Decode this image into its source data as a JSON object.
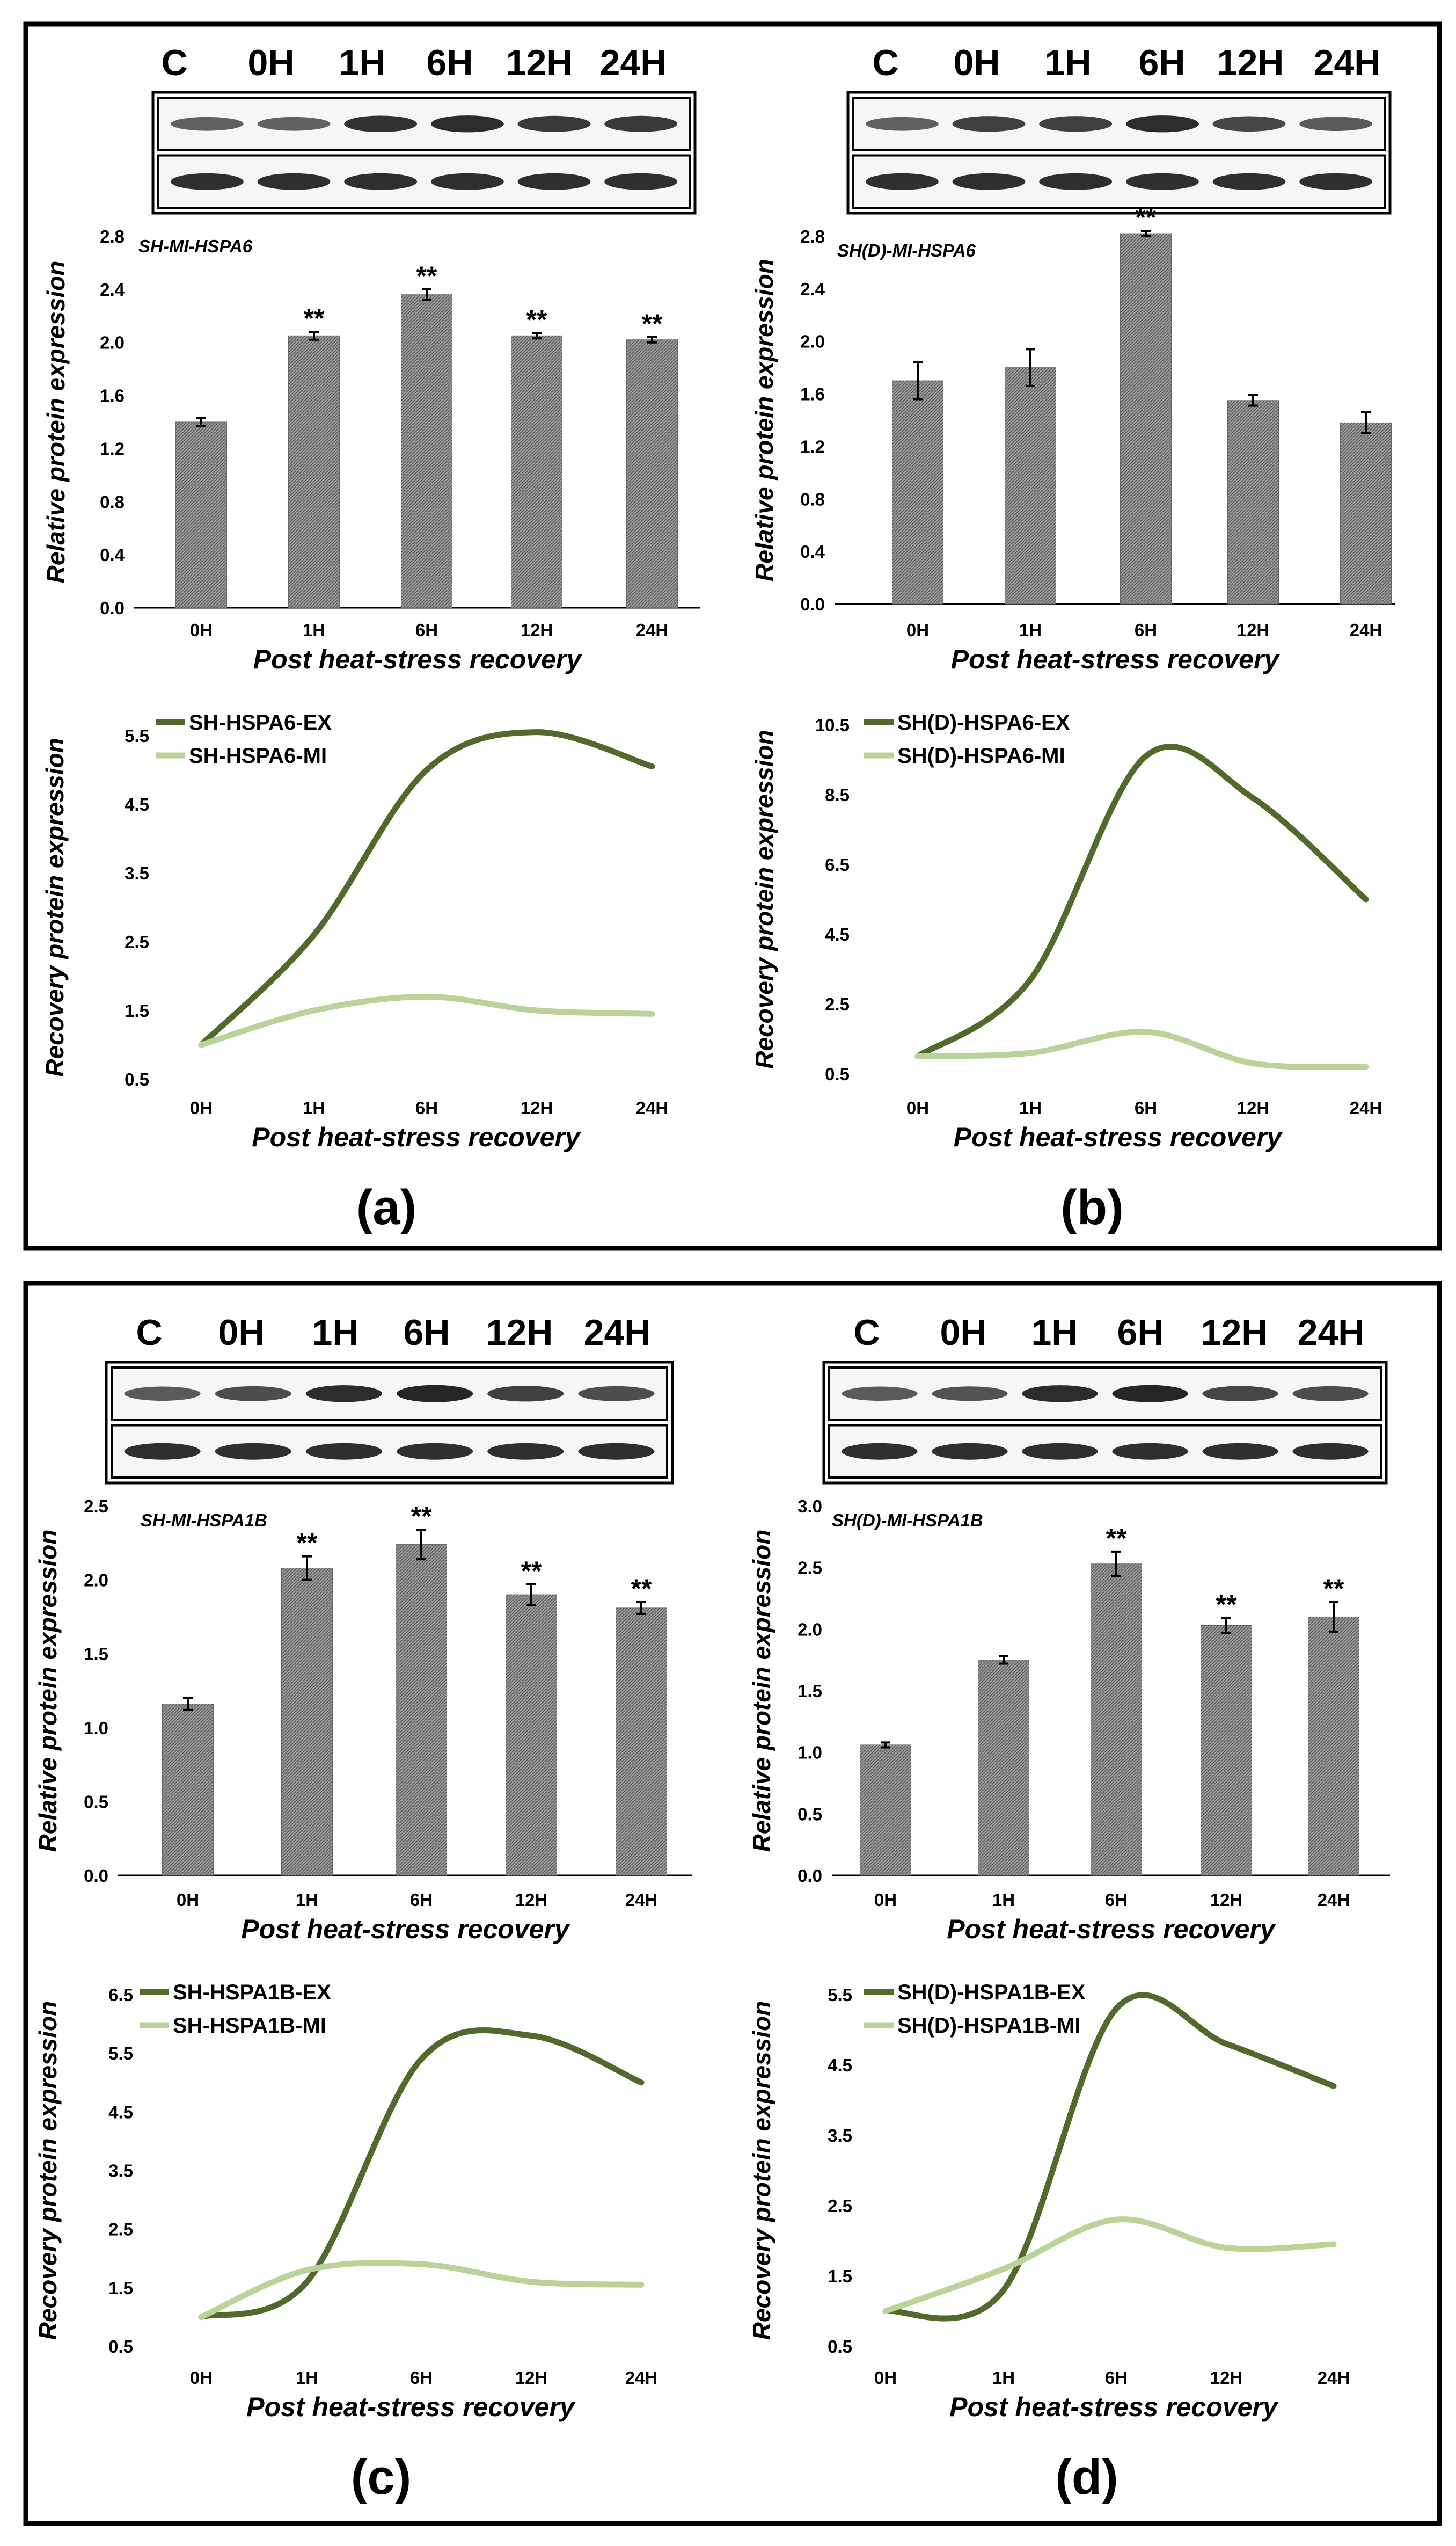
{
  "colors": {
    "ex": "#4f6a2a",
    "mi": "#b8d49a",
    "bar": "#8a8a8a",
    "frame": "#000000"
  },
  "panels": [
    {
      "label": "(a)",
      "lanes": [
        "C",
        "0H",
        "1H",
        "6H",
        "12H",
        "24H"
      ],
      "bar": {
        "title": "SH-MI-HSPA6",
        "ylabel": "Relative protein expression",
        "xlabel": "Post heat-stress recovery",
        "yticks": [
          "0.0",
          "0.4",
          "0.8",
          "1.2",
          "1.6",
          "2.0",
          "2.4",
          "2.8"
        ]
      },
      "line": {
        "ylabel": "Recovery protein expression",
        "xlabel": "Post heat-stress recovery",
        "yticks": [
          "0.5",
          "1.5",
          "2.5",
          "3.5",
          "4.5",
          "5.5"
        ],
        "legend": [
          "SH-HSPA6-EX",
          "SH-HSPA6-MI"
        ]
      }
    },
    {
      "label": "(b)",
      "lanes": [
        "C",
        "0H",
        "1H",
        "6H",
        "12H",
        "24H"
      ],
      "bar": {
        "title": "SH(D)-MI-HSPA6",
        "ylabel": "Relative protein expression",
        "xlabel": "Post heat-stress recovery",
        "yticks": [
          "0.0",
          "0.4",
          "0.8",
          "1.2",
          "1.6",
          "2.0",
          "2.4",
          "2.8"
        ]
      },
      "line": {
        "ylabel": "Recovery protein expression",
        "xlabel": "Post heat-stress recovery",
        "yticks": [
          "0.5",
          "2.5",
          "4.5",
          "6.5",
          "8.5",
          "10.5"
        ],
        "legend": [
          "SH(D)-HSPA6-EX",
          "SH(D)-HSPA6-MI"
        ]
      }
    },
    {
      "label": "(c)",
      "lanes": [
        "C",
        "0H",
        "1H",
        "6H",
        "12H",
        "24H"
      ],
      "bar": {
        "title": "SH-MI-HSPA1B",
        "ylabel": "Relative protein expression",
        "xlabel": "Post heat-stress recovery",
        "yticks": [
          "0.0",
          "0.5",
          "1.0",
          "1.5",
          "2.0",
          "2.5"
        ]
      },
      "line": {
        "ylabel": "Recovery protein expression",
        "xlabel": "Post heat-stress recovery",
        "yticks": [
          "0.5",
          "1.5",
          "2.5",
          "3.5",
          "4.5",
          "5.5",
          "6.5"
        ],
        "legend": [
          "SH-HSPA1B-EX",
          "SH-HSPA1B-MI"
        ]
      }
    },
    {
      "label": "(d)",
      "lanes": [
        "C",
        "0H",
        "1H",
        "6H",
        "12H",
        "24H"
      ],
      "bar": {
        "title": "SH(D)-MI-HSPA1B",
        "ylabel": "Relative protein expression",
        "xlabel": "Post heat-stress recovery",
        "yticks": [
          "0.0",
          "0.5",
          "1.0",
          "1.5",
          "2.0",
          "2.5",
          "3.0"
        ]
      },
      "line": {
        "ylabel": "Recovery protein expression",
        "xlabel": "Post heat-stress recovery",
        "yticks": [
          "0.5",
          "1.5",
          "2.5",
          "3.5",
          "4.5",
          "5.5"
        ],
        "legend": [
          "SH(D)-HSPA1B-EX",
          "SH(D)-HSPA1B-MI"
        ]
      }
    }
  ],
  "chart_data": [
    {
      "panel": "(a)",
      "type": "bar",
      "title": "SH-MI-HSPA6",
      "xlabel": "Post heat-stress recovery",
      "ylabel": "Relative protein expression",
      "categories": [
        "0H",
        "1H",
        "6H",
        "12H",
        "24H"
      ],
      "values": [
        1.4,
        2.05,
        2.36,
        2.05,
        2.02
      ],
      "errors": [
        0.03,
        0.03,
        0.04,
        0.02,
        0.02
      ],
      "significance": [
        "",
        "**",
        "**",
        "**",
        "**"
      ],
      "ylim": [
        0,
        2.8
      ]
    },
    {
      "panel": "(a)",
      "type": "line",
      "xlabel": "Post heat-stress recovery",
      "ylabel": "Recovery protein expression",
      "categories": [
        "0H",
        "1H",
        "6H",
        "12H",
        "24H"
      ],
      "ylim": [
        0.5,
        5.5
      ],
      "series": [
        {
          "name": "SH-HSPA6-EX",
          "values": [
            1.0,
            2.6,
            5.0,
            5.55,
            5.05
          ]
        },
        {
          "name": "SH-HSPA6-MI",
          "values": [
            1.0,
            1.5,
            1.7,
            1.5,
            1.45
          ]
        }
      ]
    },
    {
      "panel": "(b)",
      "type": "bar",
      "title": "SH(D)-MI-HSPA6",
      "xlabel": "Post heat-stress recovery",
      "ylabel": "Relative protein expression",
      "categories": [
        "0H",
        "1H",
        "6H",
        "12H",
        "24H"
      ],
      "values": [
        1.7,
        1.8,
        2.82,
        1.55,
        1.38
      ],
      "errors": [
        0.14,
        0.14,
        0.02,
        0.04,
        0.08
      ],
      "significance": [
        "",
        "",
        "**",
        "",
        ""
      ],
      "ylim": [
        0,
        2.8
      ]
    },
    {
      "panel": "(b)",
      "type": "line",
      "xlabel": "Post heat-stress recovery",
      "ylabel": "Recovery protein expression",
      "categories": [
        "0H",
        "1H",
        "6H",
        "12H",
        "24H"
      ],
      "ylim": [
        0.5,
        10.5
      ],
      "series": [
        {
          "name": "SH(D)-HSPA6-EX",
          "values": [
            1.0,
            3.2,
            9.6,
            8.4,
            5.5
          ]
        },
        {
          "name": "SH(D)-HSPA6-MI",
          "values": [
            1.0,
            1.1,
            1.7,
            0.8,
            0.7
          ]
        }
      ]
    },
    {
      "panel": "(c)",
      "type": "bar",
      "title": "SH-MI-HSPA1B",
      "xlabel": "Post heat-stress recovery",
      "ylabel": "Relative protein expression",
      "categories": [
        "0H",
        "1H",
        "6H",
        "12H",
        "24H"
      ],
      "values": [
        1.16,
        2.08,
        2.24,
        1.9,
        1.81
      ],
      "errors": [
        0.04,
        0.08,
        0.1,
        0.07,
        0.04
      ],
      "significance": [
        "",
        "**",
        "**",
        "**",
        "**"
      ],
      "ylim": [
        0,
        2.5
      ]
    },
    {
      "panel": "(c)",
      "type": "line",
      "xlabel": "Post heat-stress recovery",
      "ylabel": "Recovery protein expression",
      "categories": [
        "0H",
        "1H",
        "6H",
        "12H",
        "24H"
      ],
      "ylim": [
        0.5,
        6.5
      ],
      "series": [
        {
          "name": "SH-HSPA1B-EX",
          "values": [
            1.0,
            1.6,
            5.4,
            5.8,
            5.0
          ]
        },
        {
          "name": "SH-HSPA1B-MI",
          "values": [
            1.0,
            1.8,
            1.9,
            1.6,
            1.55
          ]
        }
      ]
    },
    {
      "panel": "(d)",
      "type": "bar",
      "title": "SH(D)-MI-HSPA1B",
      "xlabel": "Post heat-stress recovery",
      "ylabel": "Relative protein expression",
      "categories": [
        "0H",
        "1H",
        "6H",
        "12H",
        "24H"
      ],
      "values": [
        1.06,
        1.75,
        2.53,
        2.03,
        2.1
      ],
      "errors": [
        0.02,
        0.03,
        0.1,
        0.06,
        0.12
      ],
      "significance": [
        "",
        "",
        "**",
        "**",
        "**"
      ],
      "ylim": [
        0,
        3.0
      ]
    },
    {
      "panel": "(d)",
      "type": "line",
      "xlabel": "Post heat-stress recovery",
      "ylabel": "Recovery protein expression",
      "categories": [
        "0H",
        "1H",
        "6H",
        "12H",
        "24H"
      ],
      "ylim": [
        0.5,
        5.5
      ],
      "series": [
        {
          "name": "SH(D)-HSPA1B-EX",
          "values": [
            1.0,
            1.3,
            5.3,
            4.8,
            4.2
          ]
        },
        {
          "name": "SH(D)-HSPA1B-MI",
          "values": [
            1.0,
            1.6,
            2.3,
            1.9,
            1.95
          ]
        }
      ]
    }
  ]
}
